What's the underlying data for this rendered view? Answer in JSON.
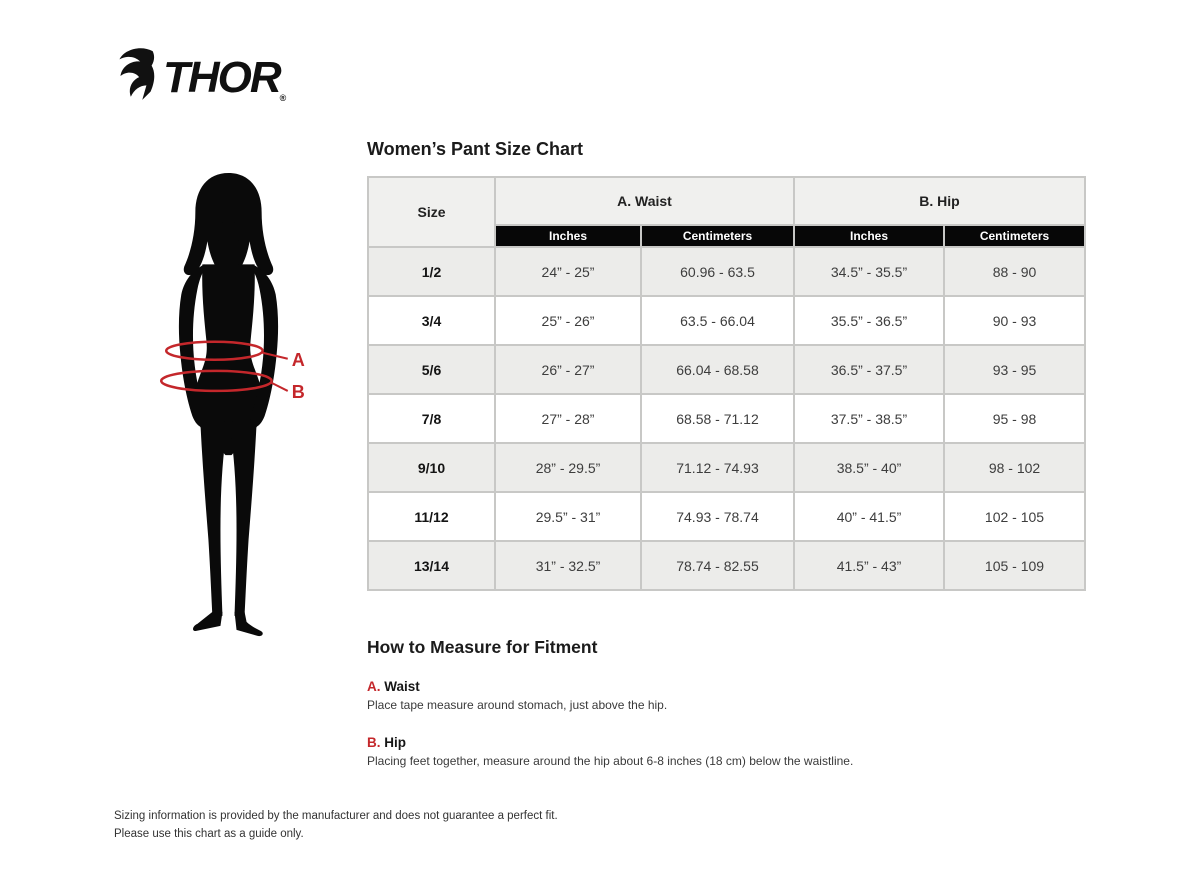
{
  "brand": {
    "name": "THOR",
    "reg": "®"
  },
  "title": "Women’s Pant Size Chart",
  "figure": {
    "label_a": "A",
    "label_b": "B",
    "accent_color": "#c4272b"
  },
  "table": {
    "col_size": "Size",
    "group_a": "A. Waist",
    "group_b": "B. Hip",
    "sub_inches": "Inches",
    "sub_centimeters": "Centimeters",
    "rows": [
      {
        "size": "1/2",
        "waist_in": "24” - 25”",
        "waist_cm": "60.96 - 63.5",
        "hip_in": "34.5” - 35.5”",
        "hip_cm": "88 - 90"
      },
      {
        "size": "3/4",
        "waist_in": "25” - 26”",
        "waist_cm": "63.5 - 66.04",
        "hip_in": "35.5” - 36.5”",
        "hip_cm": "90 - 93"
      },
      {
        "size": "5/6",
        "waist_in": "26” - 27”",
        "waist_cm": "66.04 - 68.58",
        "hip_in": "36.5” - 37.5”",
        "hip_cm": "93 - 95"
      },
      {
        "size": "7/8",
        "waist_in": "27” - 28”",
        "waist_cm": "68.58 - 71.12",
        "hip_in": "37.5” - 38.5”",
        "hip_cm": "95 - 98"
      },
      {
        "size": "9/10",
        "waist_in": "28” - 29.5”",
        "waist_cm": "71.12 - 74.93",
        "hip_in": "38.5” - 40”",
        "hip_cm": "98 - 102"
      },
      {
        "size": "11/12",
        "waist_in": "29.5” - 31”",
        "waist_cm": "74.93 - 78.74",
        "hip_in": "40” - 41.5”",
        "hip_cm": "102 - 105"
      },
      {
        "size": "13/14",
        "waist_in": "31” - 32.5”",
        "waist_cm": "78.74 - 82.55",
        "hip_in": "41.5” - 43”",
        "hip_cm": "105 - 109"
      }
    ]
  },
  "measure": {
    "heading": "How to Measure for Fitment",
    "items": [
      {
        "key": "A.",
        "name": "Waist",
        "desc": "Place tape measure around stomach, just above the hip."
      },
      {
        "key": "B.",
        "name": "Hip",
        "desc": "Placing feet together, measure around the hip about 6-8 inches (18 cm) below the waistline."
      }
    ]
  },
  "footer": {
    "line1": "Sizing information is provided by the manufacturer and does not guarantee a perfect fit.",
    "line2": "Please use this chart as a guide only."
  }
}
